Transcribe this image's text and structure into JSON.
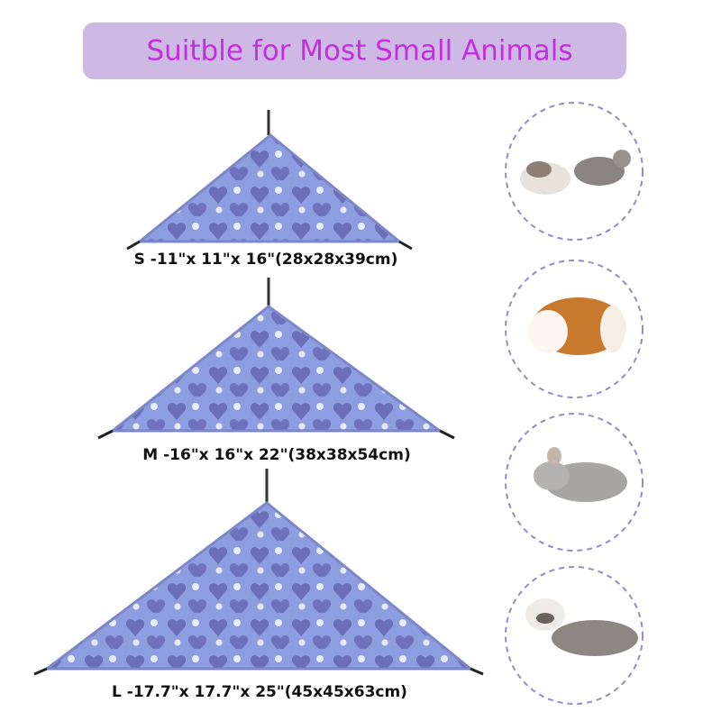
{
  "header": {
    "title": "Suitble for Most Small Animals"
  },
  "sizes": [
    {
      "label": "S -11\"x 11\"x 16\"(28x28x39cm)"
    },
    {
      "label": "M -16\"x 16\"x 22\"(38x38x54cm)"
    },
    {
      "label": "L -17.7\"x 17.7\"x 25\"(45x45x63cm)"
    }
  ]
}
